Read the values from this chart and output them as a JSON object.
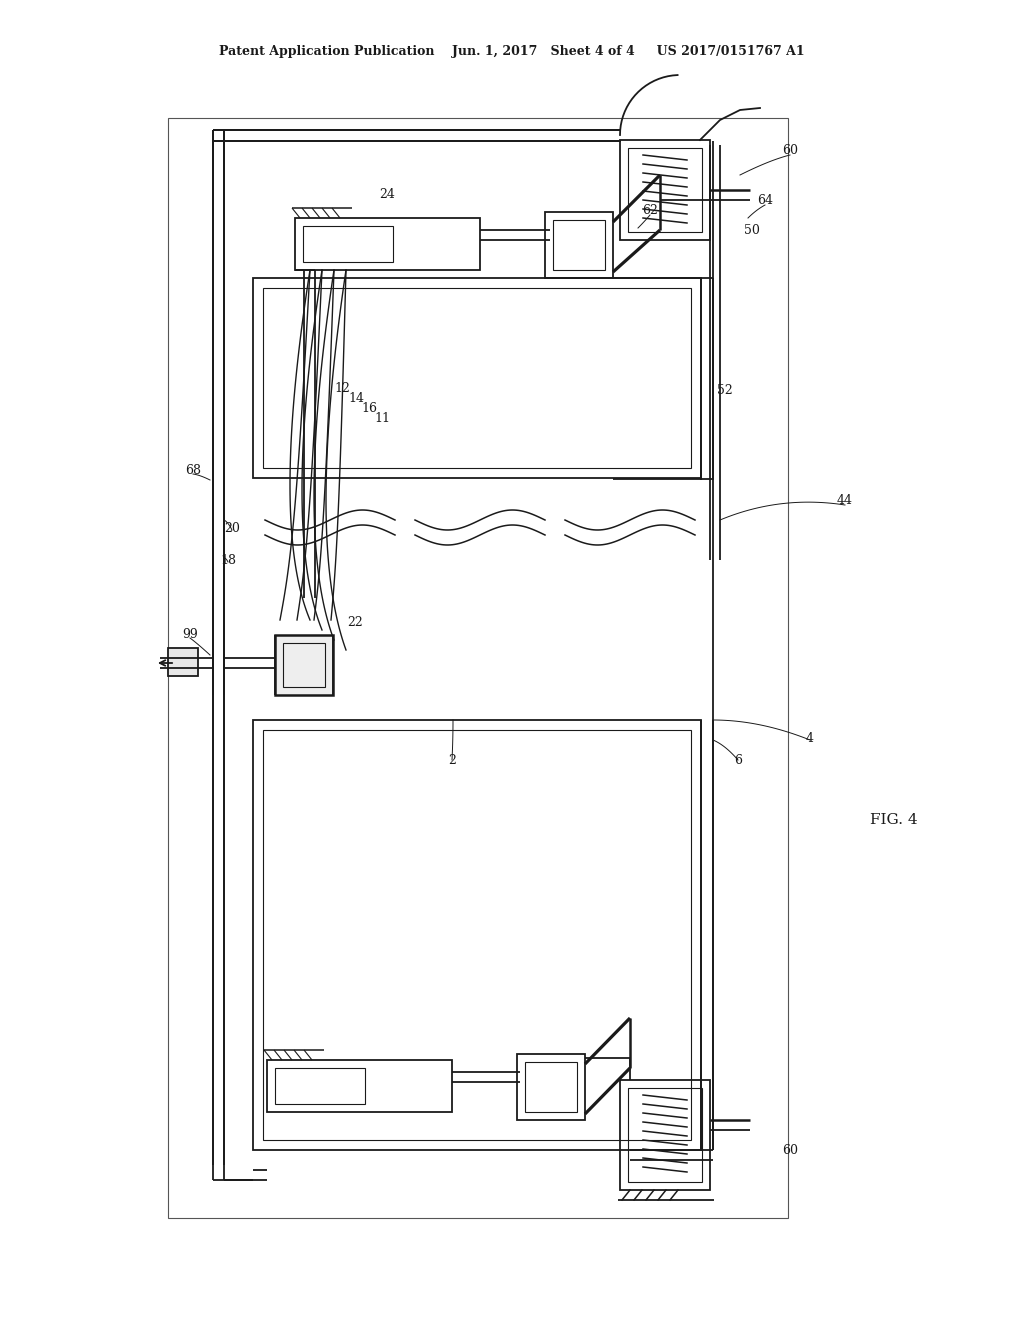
{
  "bg_color": "#ffffff",
  "title_text": "Patent Application Publication    Jun. 1, 2017   Sheet 4 of 4     US 2017/0151767 A1",
  "fig_label": "FIG. 4",
  "line_color": "#1a1a1a",
  "lw": 1.3,
  "thin_lw": 0.8
}
